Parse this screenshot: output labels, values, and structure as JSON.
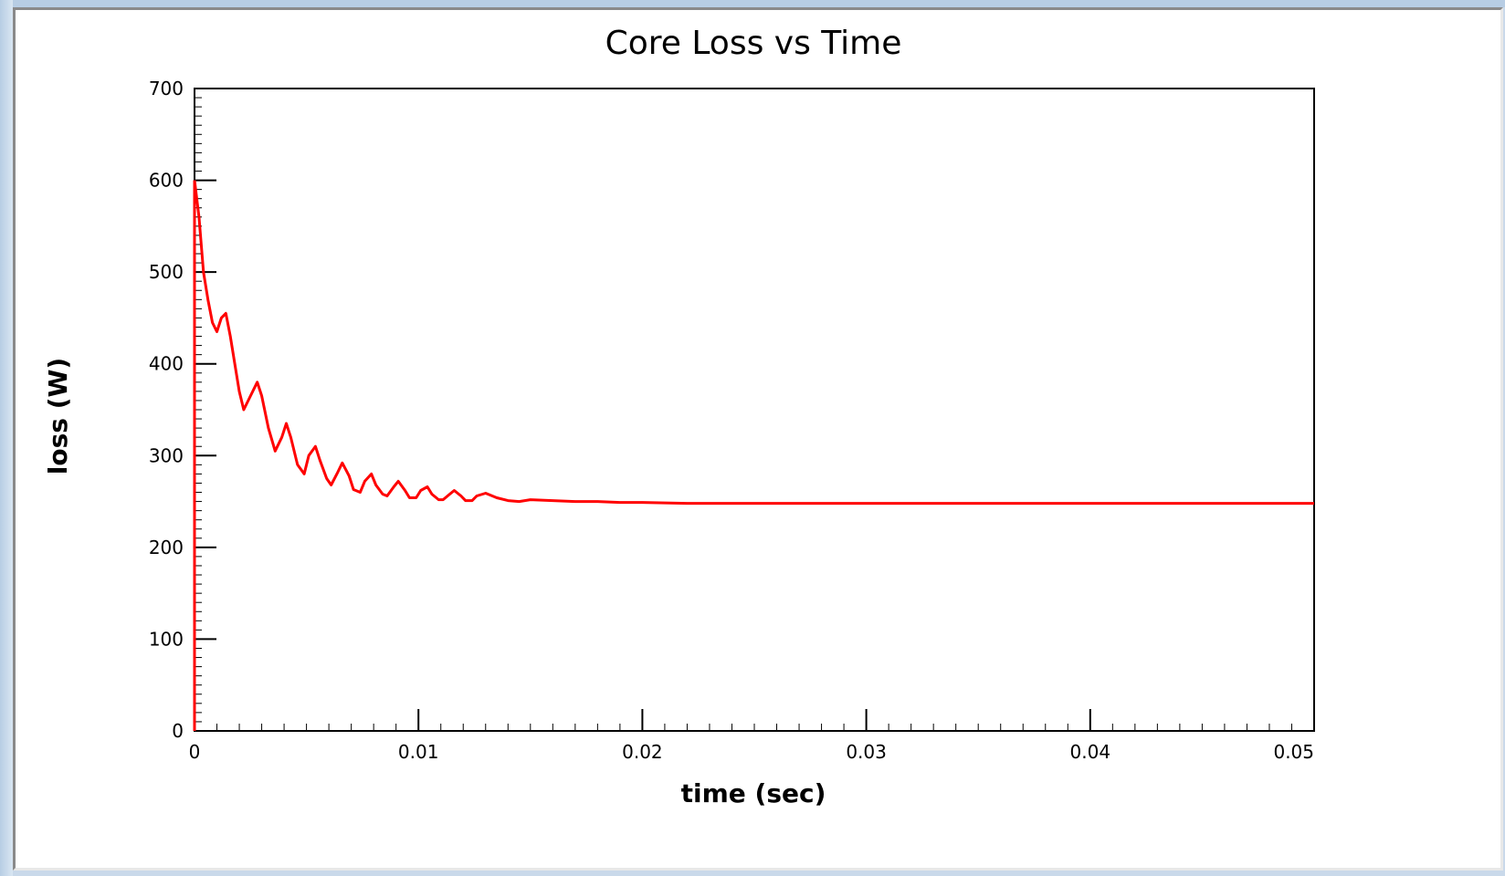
{
  "chart_data": {
    "type": "line",
    "title": "Core Loss vs Time",
    "xlabel": "time (sec)",
    "ylabel": "loss (W)",
    "xlim": [
      0,
      0.05
    ],
    "ylim": [
      0,
      700
    ],
    "xticks": [
      "0",
      "0.01",
      "0.02",
      "0.03",
      "0.04",
      "0.05"
    ],
    "yticks": [
      "0",
      "100",
      "200",
      "300",
      "400",
      "500",
      "600",
      "700"
    ],
    "grid": false,
    "line_color": "#ff0000",
    "series": [
      {
        "x": [
          0,
          0.0002,
          0.0004,
          0.0006,
          0.0008,
          0.001,
          0.0012,
          0.0014,
          0.0016,
          0.0018,
          0.002,
          0.0022,
          0.0025,
          0.0028,
          0.003,
          0.0033,
          0.0036,
          0.0039,
          0.0041,
          0.0043,
          0.0046,
          0.0049,
          0.0051,
          0.0054,
          0.0056,
          0.0059,
          0.0061,
          0.0064,
          0.0066,
          0.0069,
          0.0071,
          0.0074,
          0.0076,
          0.0079,
          0.0081,
          0.0084,
          0.0086,
          0.0089,
          0.0091,
          0.0094,
          0.0096,
          0.0099,
          0.0101,
          0.0104,
          0.0106,
          0.0109,
          0.0111,
          0.0114,
          0.0116,
          0.0119,
          0.0121,
          0.0124,
          0.0126,
          0.013,
          0.0135,
          0.014,
          0.0145,
          0.015,
          0.016,
          0.017,
          0.018,
          0.019,
          0.02,
          0.022,
          0.025,
          0.03,
          0.035,
          0.04,
          0.045,
          0.05
        ],
        "values": [
          600,
          560,
          500,
          470,
          445,
          435,
          450,
          455,
          430,
          400,
          370,
          350,
          365,
          380,
          365,
          330,
          305,
          320,
          335,
          320,
          290,
          280,
          300,
          310,
          295,
          275,
          268,
          282,
          292,
          278,
          263,
          260,
          272,
          280,
          268,
          258,
          256,
          266,
          272,
          262,
          254,
          254,
          262,
          266,
          258,
          252,
          252,
          258,
          262,
          256,
          251,
          251,
          256,
          259,
          254,
          251,
          250,
          252,
          251,
          250,
          250,
          249,
          249,
          248,
          248,
          248,
          248,
          248,
          248,
          248
        ]
      }
    ]
  }
}
